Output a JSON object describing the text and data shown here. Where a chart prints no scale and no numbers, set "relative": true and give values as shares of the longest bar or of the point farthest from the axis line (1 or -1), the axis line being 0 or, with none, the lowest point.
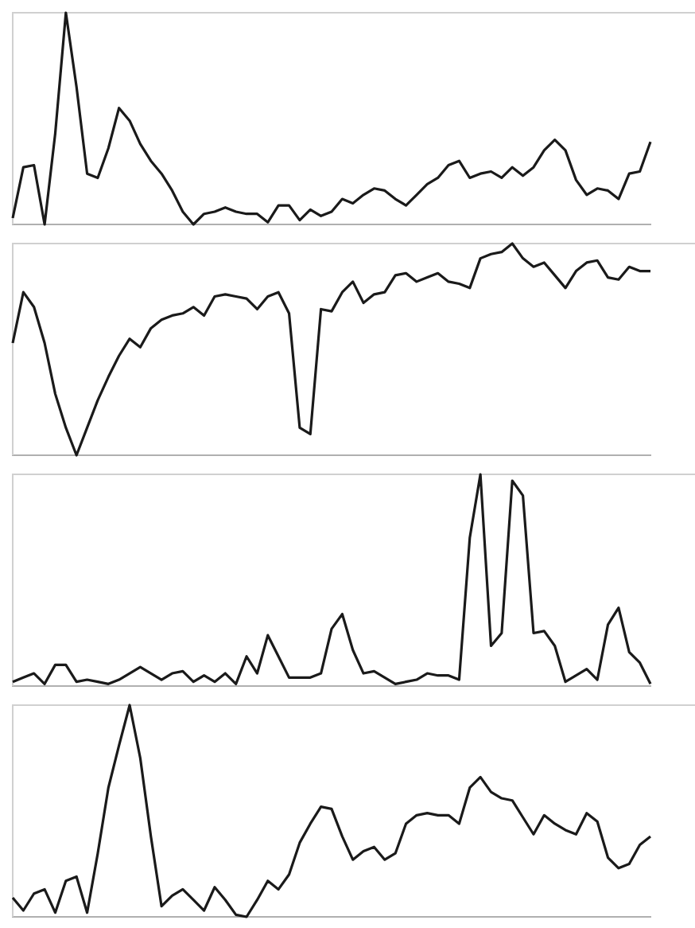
{
  "chart_data": [
    {
      "type": "line",
      "relative": true,
      "tick_labels": false,
      "legend": false,
      "marker": "none",
      "line_style": "solid",
      "categories": [
        null,
        null,
        null,
        null,
        null,
        null,
        null,
        null,
        null,
        null,
        null,
        null,
        null,
        null,
        null,
        null,
        null,
        null,
        null,
        null,
        null,
        null,
        null,
        null,
        null,
        null,
        null,
        null,
        null,
        null,
        null,
        null,
        null,
        null,
        null,
        null,
        null,
        null,
        null,
        null,
        null,
        null,
        null,
        null,
        null,
        null,
        null,
        null,
        null,
        null,
        null,
        null,
        null,
        null,
        null,
        null,
        null,
        null,
        null,
        null,
        null
      ],
      "series": [
        {
          "color": "#1a1a1a",
          "values": [
            0.03,
            0.27,
            0.28,
            0,
            0.43,
            1,
            0.65,
            0.24,
            0.22,
            0.36,
            0.55,
            0.49,
            0.38,
            0.3,
            0.24,
            0.16,
            0.06,
            0,
            0.05,
            0.06,
            0.08,
            0.06,
            0.05,
            0.05,
            0.01,
            0.09,
            0.09,
            0.02,
            0.07,
            0.04,
            0.06,
            0.12,
            0.1,
            0.14,
            0.17,
            0.16,
            0.12,
            0.09,
            0.14,
            0.19,
            0.22,
            0.28,
            0.3,
            0.22,
            0.24,
            0.25,
            0.22,
            0.27,
            0.23,
            0.27,
            0.35,
            0.4,
            0.35,
            0.21,
            0.14,
            0.17,
            0.16,
            0.12,
            0.24,
            0.25,
            0.39
          ]
        }
      ]
    },
    {
      "type": "line",
      "relative": true,
      "tick_labels": false,
      "legend": false,
      "marker": "none",
      "line_style": "solid",
      "categories": [
        null,
        null,
        null,
        null,
        null,
        null,
        null,
        null,
        null,
        null,
        null,
        null,
        null,
        null,
        null,
        null,
        null,
        null,
        null,
        null,
        null,
        null,
        null,
        null,
        null,
        null,
        null,
        null,
        null,
        null,
        null,
        null,
        null,
        null,
        null,
        null,
        null,
        null,
        null,
        null,
        null,
        null,
        null,
        null,
        null,
        null,
        null,
        null,
        null,
        null,
        null,
        null,
        null,
        null,
        null,
        null,
        null,
        null,
        null,
        null,
        null
      ],
      "series": [
        {
          "color": "#1a1a1a",
          "values": [
            0.53,
            0.77,
            0.7,
            0.53,
            0.29,
            0.13,
            0,
            0.13,
            0.26,
            0.37,
            0.47,
            0.55,
            0.51,
            0.6,
            0.64,
            0.66,
            0.67,
            0.7,
            0.66,
            0.75,
            0.76,
            0.75,
            0.74,
            0.69,
            0.75,
            0.77,
            0.67,
            0.13,
            0.1,
            0.69,
            0.68,
            0.77,
            0.82,
            0.72,
            0.76,
            0.77,
            0.85,
            0.86,
            0.82,
            0.84,
            0.86,
            0.82,
            0.81,
            0.79,
            0.93,
            0.95,
            0.96,
            1,
            0.93,
            0.89,
            0.91,
            0.85,
            0.79,
            0.87,
            0.91,
            0.92,
            0.84,
            0.83,
            0.89,
            0.87,
            0.87
          ]
        }
      ]
    },
    {
      "type": "line",
      "relative": true,
      "tick_labels": false,
      "legend": false,
      "marker": "none",
      "line_style": "solid",
      "categories": [
        null,
        null,
        null,
        null,
        null,
        null,
        null,
        null,
        null,
        null,
        null,
        null,
        null,
        null,
        null,
        null,
        null,
        null,
        null,
        null,
        null,
        null,
        null,
        null,
        null,
        null,
        null,
        null,
        null,
        null,
        null,
        null,
        null,
        null,
        null,
        null,
        null,
        null,
        null,
        null,
        null,
        null,
        null,
        null,
        null,
        null,
        null,
        null,
        null,
        null,
        null,
        null,
        null,
        null,
        null,
        null,
        null,
        null,
        null,
        null,
        null
      ],
      "series": [
        {
          "color": "#1a1a1a",
          "values": [
            0.02,
            0.04,
            0.06,
            0.01,
            0.1,
            0.1,
            0.02,
            0.03,
            0.02,
            0.01,
            0.03,
            0.06,
            0.09,
            0.06,
            0.03,
            0.06,
            0.07,
            0.02,
            0.05,
            0.02,
            0.06,
            0.01,
            0.14,
            0.06,
            0.24,
            0.14,
            0.04,
            0.04,
            0.04,
            0.06,
            0.27,
            0.34,
            0.17,
            0.06,
            0.07,
            0.04,
            0.01,
            0.02,
            0.03,
            0.06,
            0.05,
            0.05,
            0.03,
            0.7,
            1,
            0.19,
            0.25,
            0.97,
            0.9,
            0.25,
            0.26,
            0.19,
            0.02,
            0.05,
            0.08,
            0.03,
            0.29,
            0.37,
            0.16,
            0.11,
            0.01
          ]
        }
      ]
    },
    {
      "type": "line",
      "relative": true,
      "tick_labels": false,
      "legend": false,
      "marker": "none",
      "line_style": "solid",
      "categories": [
        null,
        null,
        null,
        null,
        null,
        null,
        null,
        null,
        null,
        null,
        null,
        null,
        null,
        null,
        null,
        null,
        null,
        null,
        null,
        null,
        null,
        null,
        null,
        null,
        null,
        null,
        null,
        null,
        null,
        null,
        null,
        null,
        null,
        null,
        null,
        null,
        null,
        null,
        null,
        null,
        null,
        null,
        null,
        null,
        null,
        null,
        null,
        null,
        null,
        null,
        null,
        null,
        null,
        null,
        null,
        null,
        null,
        null,
        null,
        null,
        null
      ],
      "series": [
        {
          "color": "#1a1a1a",
          "values": [
            0.09,
            0.03,
            0.11,
            0.13,
            0.02,
            0.17,
            0.19,
            0.02,
            0.3,
            0.61,
            0.81,
            1,
            0.75,
            0.38,
            0.05,
            0.1,
            0.13,
            0.08,
            0.03,
            0.14,
            0.08,
            0.01,
            0,
            0.08,
            0.17,
            0.13,
            0.2,
            0.35,
            0.44,
            0.52,
            0.51,
            0.38,
            0.27,
            0.31,
            0.33,
            0.27,
            0.3,
            0.44,
            0.48,
            0.49,
            0.48,
            0.48,
            0.44,
            0.61,
            0.66,
            0.59,
            0.56,
            0.55,
            0.47,
            0.39,
            0.48,
            0.44,
            0.41,
            0.39,
            0.49,
            0.45,
            0.28,
            0.23,
            0.25,
            0.34,
            0.38
          ]
        }
      ]
    }
  ]
}
